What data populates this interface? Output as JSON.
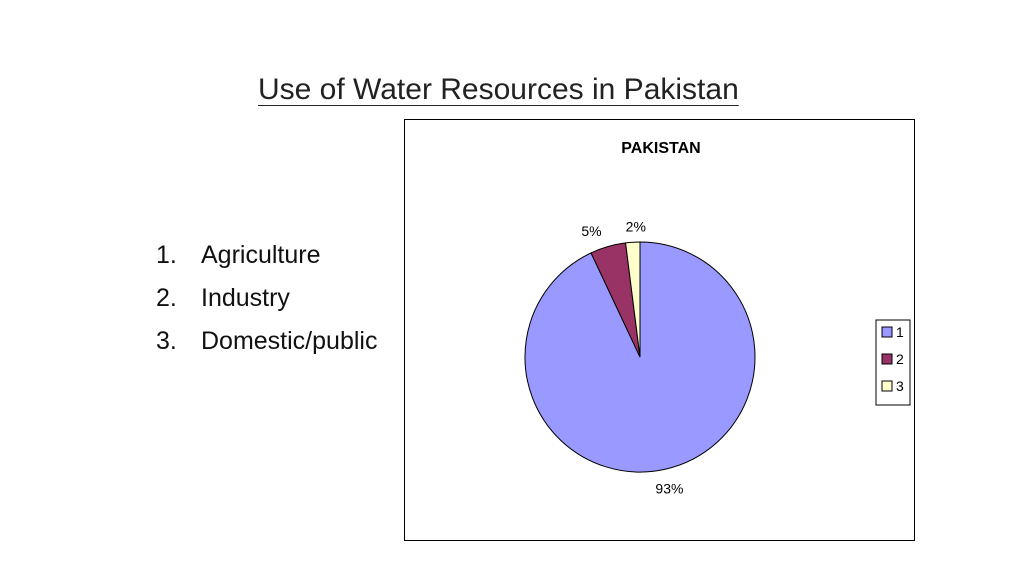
{
  "slide": {
    "title": "Use of Water Resources in Pakistan",
    "items": [
      {
        "number": "1.",
        "label": "Agriculture"
      },
      {
        "number": "2.",
        "label": "Industry"
      },
      {
        "number": "3.",
        "label": "Domestic/public"
      }
    ]
  },
  "chart_data": {
    "type": "pie",
    "title": "PAKISTAN",
    "categories": [
      "1",
      "2",
      "3"
    ],
    "values": [
      93,
      5,
      2
    ],
    "data_labels": [
      "93%",
      "5%",
      "2%"
    ],
    "colors": [
      "#9999ff",
      "#993366",
      "#ffffcc"
    ],
    "legend_position": "right"
  }
}
